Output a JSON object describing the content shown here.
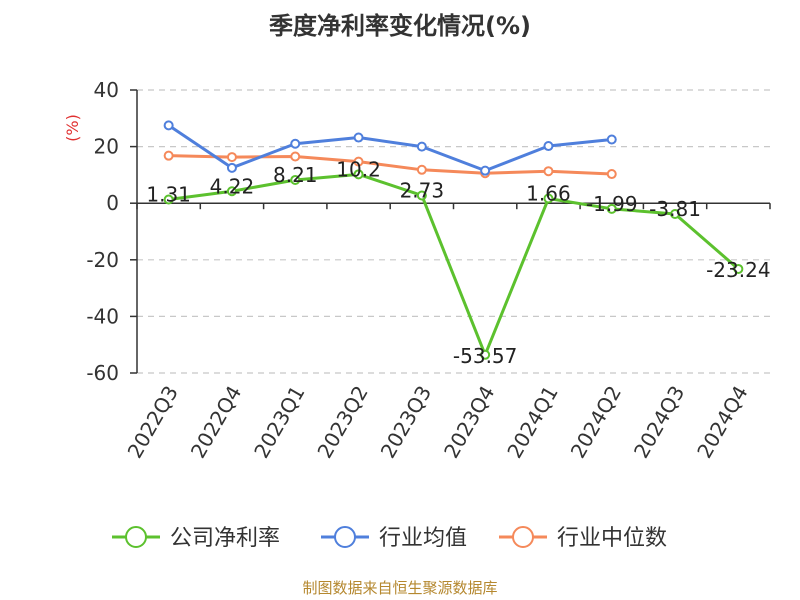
{
  "chart_data": {
    "type": "line",
    "title": "季度净利率变化情况(%)",
    "ylabel": "(%)",
    "ylim": [
      -60,
      40
    ],
    "yticks": [
      -60,
      -40,
      -20,
      0,
      20,
      40
    ],
    "grid": true,
    "legend_position": "bottom",
    "categories": [
      "2022Q3",
      "2022Q4",
      "2023Q1",
      "2023Q2",
      "2023Q3",
      "2023Q4",
      "2024Q1",
      "2024Q2",
      "2024Q3",
      "2024Q4"
    ],
    "series": [
      {
        "name": "公司净利率",
        "color": "#5cc12e",
        "values": [
          1.31,
          4.22,
          8.21,
          10.2,
          2.73,
          -53.57,
          1.66,
          -1.99,
          -3.81,
          -23.24
        ],
        "labels": [
          "1.31",
          "4.22",
          "8.21",
          "10.2",
          "2.73",
          "-53.57",
          "1.66",
          "-1.99",
          "-3.81",
          "-23.24"
        ]
      },
      {
        "name": "行业均值",
        "color": "#4f7fdc",
        "values": [
          27.5,
          12.5,
          21.0,
          23.2,
          20.0,
          11.5,
          20.2,
          22.5,
          null,
          null
        ]
      },
      {
        "name": "行业中位数",
        "color": "#f5895a",
        "values": [
          16.8,
          16.3,
          16.5,
          14.7,
          11.8,
          10.6,
          11.3,
          10.3,
          null,
          null
        ]
      }
    ]
  },
  "source": "制图数据来自恒生聚源数据库"
}
